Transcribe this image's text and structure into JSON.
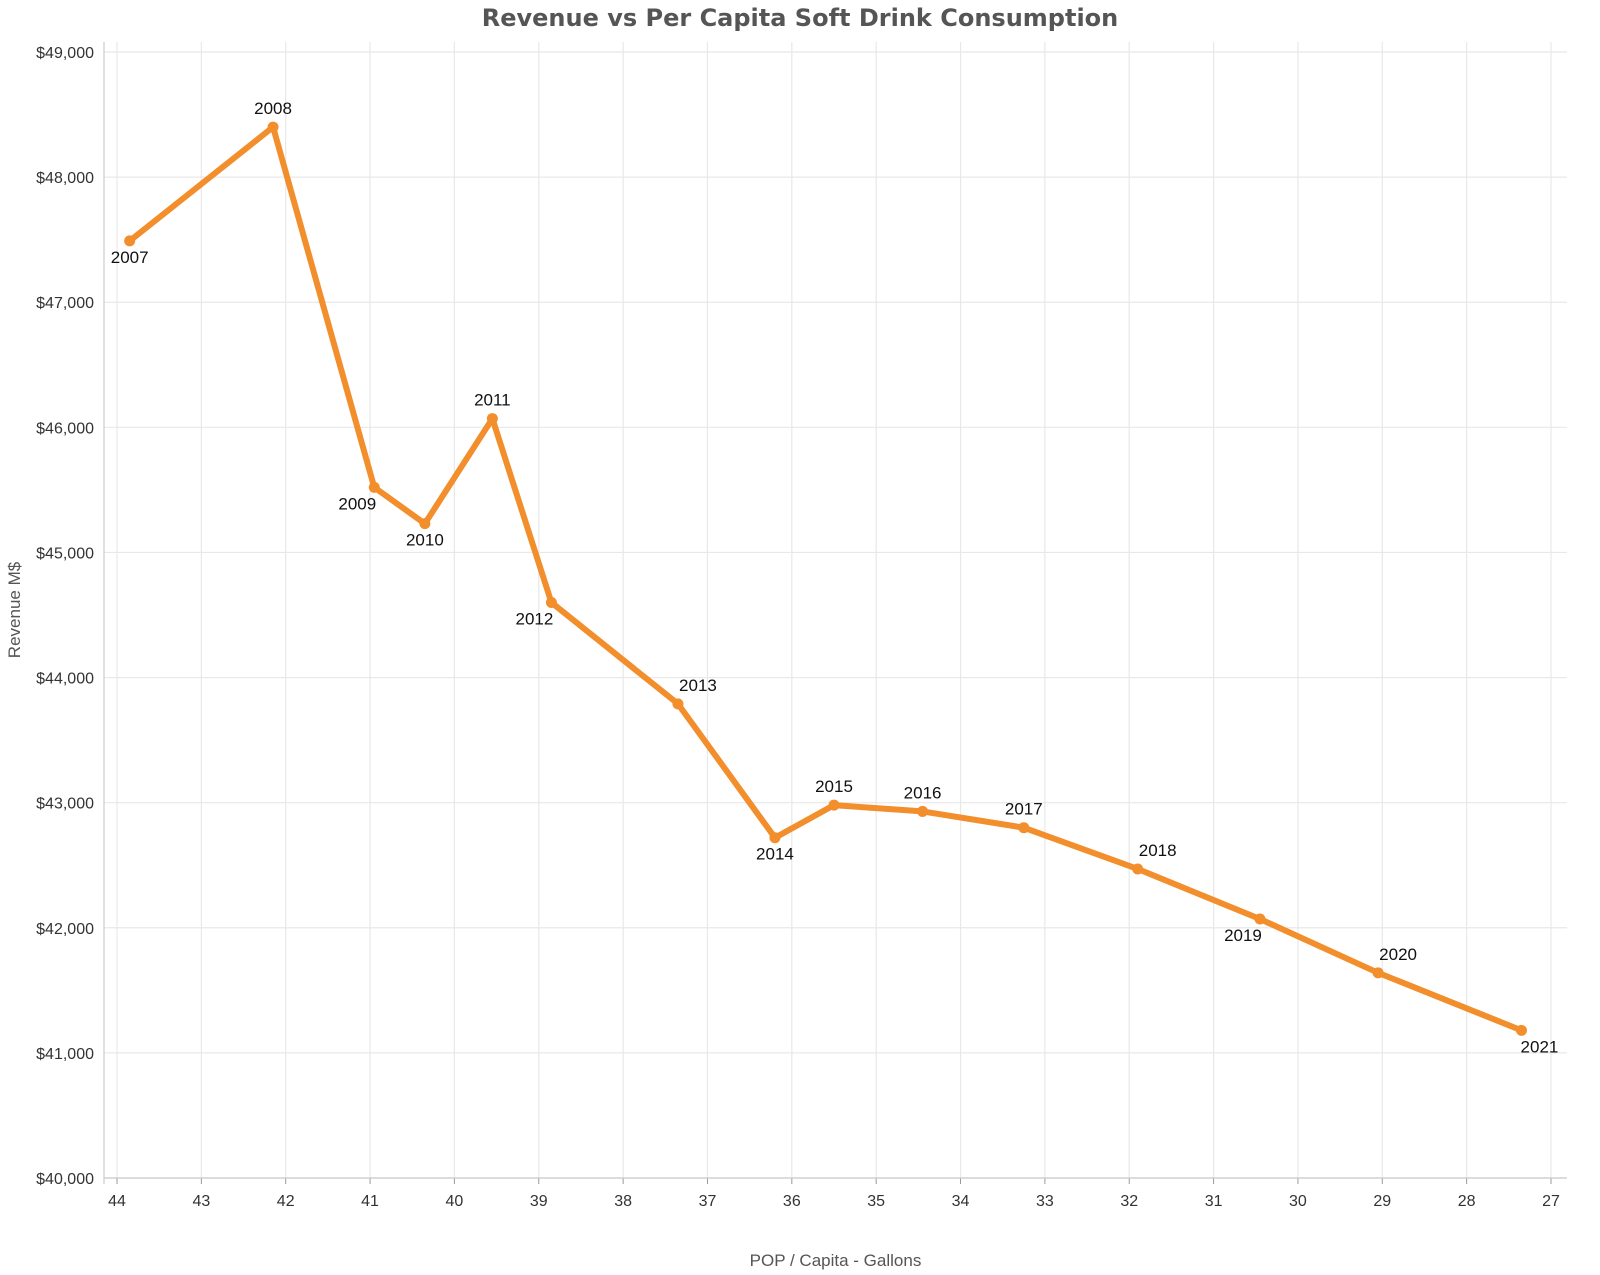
{
  "chart_data": {
    "type": "line",
    "title": "Revenue vs Per Capita Soft Drink Consumption",
    "xlabel": "POP / Capita - Gallons",
    "ylabel": "Revenue M$",
    "x_reversed": true,
    "xlim": [
      27,
      44
    ],
    "ylim": [
      40000,
      49000
    ],
    "x_ticks": [
      44,
      43,
      42,
      41,
      40,
      39,
      38,
      37,
      36,
      35,
      34,
      33,
      32,
      31,
      30,
      29,
      28,
      27
    ],
    "y_ticks": [
      49000,
      48000,
      47000,
      46000,
      45000,
      44000,
      43000,
      42000,
      41000,
      40000
    ],
    "y_tick_labels": [
      "$49,000",
      "$48,000",
      "$47,000",
      "$46,000",
      "$45,000",
      "$44,000",
      "$43,000",
      "$42,000",
      "$41,000",
      "$40,000"
    ],
    "grid": true,
    "line_color": "#F28E2B",
    "points": [
      {
        "label": "2007",
        "x": 43.85,
        "y": 47490,
        "label_pos": "below"
      },
      {
        "label": "2008",
        "x": 42.15,
        "y": 48400,
        "label_pos": "above"
      },
      {
        "label": "2009",
        "x": 40.95,
        "y": 45520,
        "label_pos": "below-left"
      },
      {
        "label": "2010",
        "x": 40.35,
        "y": 45230,
        "label_pos": "below"
      },
      {
        "label": "2011",
        "x": 39.55,
        "y": 46070,
        "label_pos": "above"
      },
      {
        "label": "2012",
        "x": 38.85,
        "y": 44600,
        "label_pos": "below-left"
      },
      {
        "label": "2013",
        "x": 37.35,
        "y": 43790,
        "label_pos": "above-right"
      },
      {
        "label": "2014",
        "x": 36.2,
        "y": 42720,
        "label_pos": "below"
      },
      {
        "label": "2015",
        "x": 35.5,
        "y": 42980,
        "label_pos": "above"
      },
      {
        "label": "2016",
        "x": 34.45,
        "y": 42930,
        "label_pos": "above"
      },
      {
        "label": "2017",
        "x": 33.25,
        "y": 42800,
        "label_pos": "above"
      },
      {
        "label": "2018",
        "x": 31.9,
        "y": 42470,
        "label_pos": "above-right"
      },
      {
        "label": "2019",
        "x": 30.45,
        "y": 42070,
        "label_pos": "below-left"
      },
      {
        "label": "2020",
        "x": 29.05,
        "y": 41640,
        "label_pos": "above-right"
      },
      {
        "label": "2021",
        "x": 27.35,
        "y": 41180,
        "label_pos": "below-right"
      }
    ]
  }
}
